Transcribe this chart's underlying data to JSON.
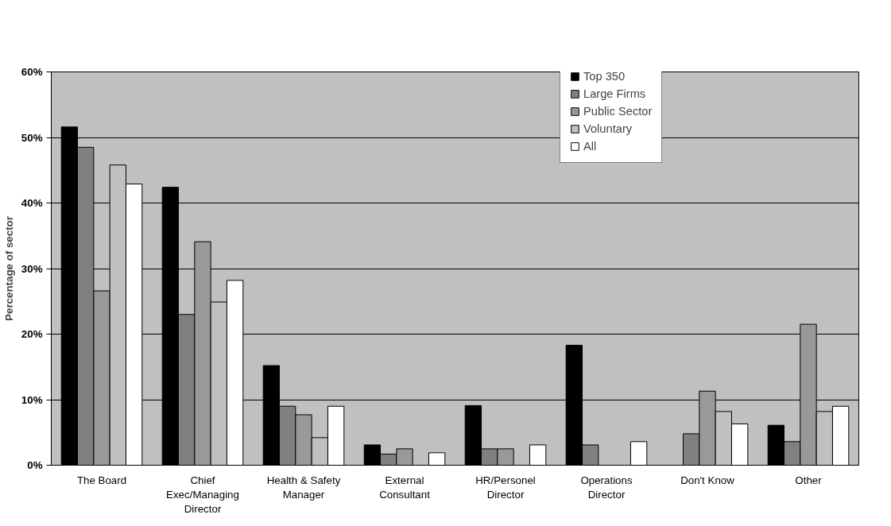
{
  "chart_data": {
    "type": "bar",
    "ylabel": "Percentage of sector",
    "categories": [
      "The Board",
      "Chief Exec/Managing Director",
      "Health & Safety Manager",
      "External Consultant",
      "HR/Personel Director",
      "Operations Director",
      "Don't Know",
      "Other"
    ],
    "series": [
      {
        "name": "Top 350",
        "color": "#000000",
        "values": [
          51.6,
          42.4,
          15.2,
          3.1,
          9.1,
          18.3,
          null,
          6.1
        ]
      },
      {
        "name": "Large Firms",
        "color": "#808080",
        "values": [
          48.5,
          23.0,
          9.0,
          1.7,
          2.5,
          3.1,
          4.8,
          3.6
        ]
      },
      {
        "name": "Public Sector",
        "color": "#999999",
        "values": [
          26.6,
          34.1,
          7.7,
          2.5,
          2.5,
          null,
          11.3,
          21.5
        ]
      },
      {
        "name": "Voluntary",
        "color": "#c0c0c0",
        "values": [
          45.8,
          24.9,
          4.2,
          null,
          null,
          null,
          8.2,
          8.2
        ]
      },
      {
        "name": "All",
        "color": "#ffffff",
        "values": [
          42.9,
          28.2,
          9.0,
          1.9,
          3.1,
          3.6,
          6.3,
          9.0
        ]
      }
    ],
    "ylim": [
      0,
      60
    ],
    "yticks": [
      {
        "value": 0,
        "label": "0%"
      },
      {
        "value": 10,
        "label": "10%"
      },
      {
        "value": 20,
        "label": "20%"
      },
      {
        "value": 30,
        "label": "30%"
      },
      {
        "value": 40,
        "label": "40%"
      },
      {
        "value": 50,
        "label": "50%"
      },
      {
        "value": 60,
        "label": "60%"
      }
    ],
    "grid": "y",
    "legend": "top right"
  }
}
